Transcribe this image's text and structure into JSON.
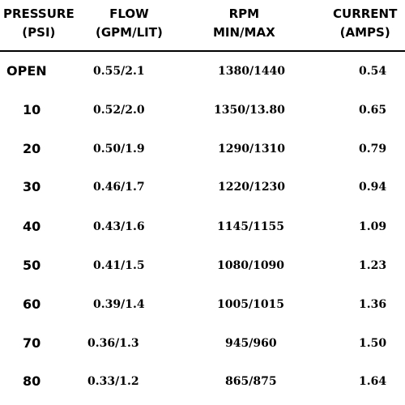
{
  "table": {
    "headers": [
      {
        "line1": "PRESSURE",
        "line2": "(PSI)"
      },
      {
        "line1": "FLOW",
        "line2": "(GPM/LIT)"
      },
      {
        "line1": "RPM",
        "line2": "MIN/MAX"
      },
      {
        "line1": "CURRENT",
        "line2": "(AMPS)"
      }
    ],
    "rows": [
      {
        "pressure": "OPEN",
        "flow": "0.55/2.1",
        "rpm": "1380/1440",
        "current": "0.54"
      },
      {
        "pressure": "10",
        "flow": "0.52/2.0",
        "rpm": "1350/13.80",
        "current": "0.65"
      },
      {
        "pressure": "20",
        "flow": "0.50/1.9",
        "rpm": "1290/1310",
        "current": "0.79"
      },
      {
        "pressure": "30",
        "flow": "0.46/1.7",
        "rpm": "1220/1230",
        "current": "0.94"
      },
      {
        "pressure": "40",
        "flow": "0.43/1.6",
        "rpm": "1145/1155",
        "current": "1.09"
      },
      {
        "pressure": "50",
        "flow": "0.41/1.5",
        "rpm": "1080/1090",
        "current": "1.23"
      },
      {
        "pressure": "60",
        "flow": "0.39/1.4",
        "rpm": "1005/1015",
        "current": "1.36"
      },
      {
        "pressure": "70",
        "flow": "0.36/1.3",
        "rpm": "945/960",
        "current": "1.50"
      },
      {
        "pressure": "80",
        "flow": "0.33/1.2",
        "rpm": "865/875",
        "current": "1.64"
      }
    ]
  }
}
